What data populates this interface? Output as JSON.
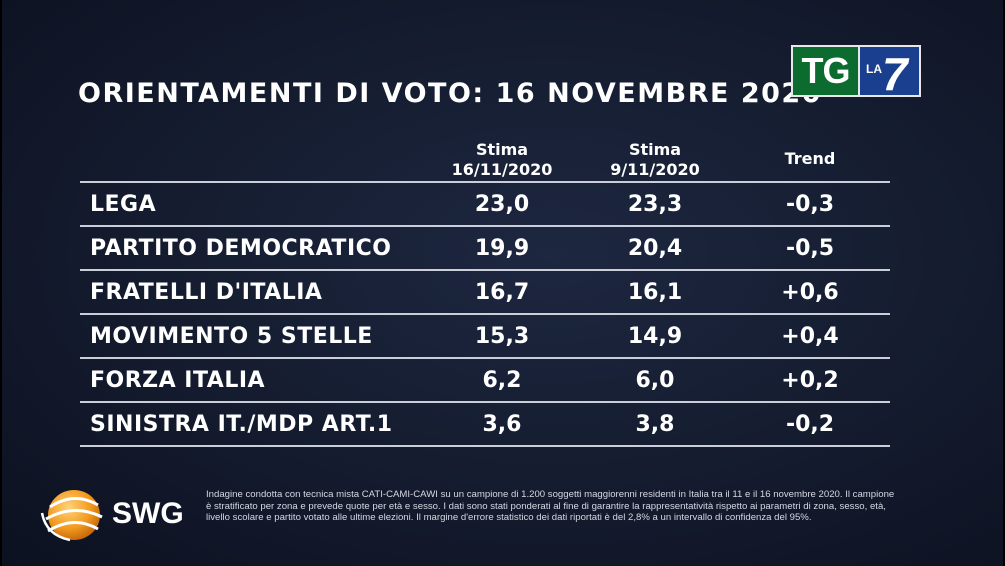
{
  "title": "ORIENTAMENTI DI VOTO: 16 NOVEMBRE 2020",
  "broadcaster": {
    "tg": "TG",
    "la": "LA",
    "seven": "7"
  },
  "columns": {
    "col1_line1": "Stima",
    "col1_line2": "16/11/2020",
    "col2_line1": "Stima",
    "col2_line2": "9/11/2020",
    "col3": "Trend"
  },
  "rows": [
    {
      "party": "LEGA",
      "stima_16_11": "23,0",
      "stima_9_11": "23,3",
      "trend": "-0,3"
    },
    {
      "party": "PARTITO DEMOCRATICO",
      "stima_16_11": "19,9",
      "stima_9_11": "20,4",
      "trend": "-0,5"
    },
    {
      "party": "FRATELLI D'ITALIA",
      "stima_16_11": "16,7",
      "stima_9_11": "16,1",
      "trend": "+0,6"
    },
    {
      "party": "MOVIMENTO 5 STELLE",
      "stima_16_11": "15,3",
      "stima_9_11": "14,9",
      "trend": "+0,4"
    },
    {
      "party": "FORZA ITALIA",
      "stima_16_11": "6,2",
      "stima_9_11": "6,0",
      "trend": "+0,2"
    },
    {
      "party": "SINISTRA IT./MDP ART.1",
      "stima_16_11": "3,6",
      "stima_9_11": "3,8",
      "trend": "-0,2"
    }
  ],
  "pollster": {
    "name": "SWG",
    "icon": "globe-icon"
  },
  "footnote": "Indagine condotta con tecnica mista CATI-CAMI-CAWI su un campione di 1.200 soggetti maggiorenni residenti in Italia tra il 11 e il 16 novembre 2020. Il campione è stratificato per zona e prevede quote per età e sesso. I dati sono stati ponderati al fine di garantire la rappresentatività rispetto ai parametri di zona, sesso, età, livello scolare e partito votato alle ultime elezioni. Il margine d'errore statistico dei dati riportati è del 2,8% a un intervallo di confidenza del 95%.",
  "colors": {
    "background": "#141b2e",
    "tg_green": "#0c6b2f",
    "la7_blue": "#1a3f8f",
    "swg_orange": "#f39a1e",
    "rule": "#c9ced8"
  }
}
